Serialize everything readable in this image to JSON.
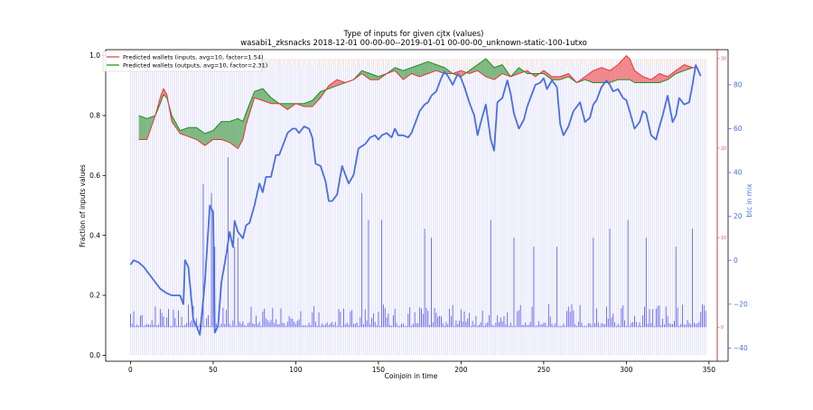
{
  "chart_data": {
    "type": "line",
    "title": "Type of inputs for given cjtx (values)",
    "subtitle": "wasabi1_zksnacks 2018-12-01 00-00-00--2019-01-01 00-00-00_unknown-static-100-1utxo",
    "xlabel": "Coinjoin in time",
    "ylabel_left": "Fraction of inputs values",
    "ylabel_right": "btc in mix",
    "xlim": [
      -15,
      355
    ],
    "ylim_left": [
      -0.02,
      1.02
    ],
    "ylim_right": [
      -46,
      96
    ],
    "ylim_mid": [
      -3.8,
      31
    ],
    "x_ticks": [
      0,
      50,
      100,
      150,
      200,
      250,
      300,
      350
    ],
    "y_ticks_left": [
      0.0,
      0.2,
      0.4,
      0.6,
      0.8,
      1.0
    ],
    "y_ticks_right": [
      -40,
      -20,
      0,
      20,
      40,
      60,
      80
    ],
    "y_ticks_mid": [
      0,
      10,
      20,
      30
    ],
    "grid": false,
    "legend_position": "top-left",
    "colors": {
      "inputs": "#ee3333",
      "outputs": "#228B22",
      "btc": "#4a6fe0",
      "bars": "#3a3ae8",
      "stripes": "#b8b8f0",
      "mid_axis": "#e05555"
    },
    "series": [
      {
        "name": "Predicted wallets (inputs, avg=10, factor=1.54)",
        "axis": "left",
        "x": [
          5,
          10,
          15,
          18,
          20,
          22,
          25,
          30,
          35,
          40,
          45,
          50,
          55,
          60,
          65,
          68,
          70,
          75,
          80,
          85,
          90,
          95,
          100,
          105,
          110,
          115,
          120,
          125,
          130,
          135,
          140,
          145,
          150,
          155,
          160,
          165,
          170,
          175,
          180,
          185,
          190,
          195,
          200,
          205,
          210,
          215,
          220,
          225,
          230,
          235,
          240,
          245,
          250,
          255,
          260,
          265,
          270,
          275,
          280,
          285,
          290,
          295,
          300,
          302,
          305,
          310,
          315,
          320,
          325,
          330,
          335,
          340,
          343
        ],
        "values": [
          0.72,
          0.72,
          0.8,
          0.86,
          0.89,
          0.87,
          0.78,
          0.74,
          0.73,
          0.72,
          0.7,
          0.72,
          0.72,
          0.71,
          0.69,
          0.72,
          0.77,
          0.86,
          0.85,
          0.84,
          0.84,
          0.82,
          0.84,
          0.83,
          0.83,
          0.86,
          0.9,
          0.92,
          0.91,
          0.92,
          0.94,
          0.92,
          0.92,
          0.94,
          0.95,
          0.92,
          0.94,
          0.93,
          0.94,
          0.95,
          0.94,
          0.94,
          0.95,
          0.94,
          0.95,
          0.93,
          0.92,
          0.94,
          0.93,
          0.94,
          0.95,
          0.93,
          0.95,
          0.93,
          0.93,
          0.94,
          0.91,
          0.93,
          0.95,
          0.96,
          0.95,
          0.97,
          1.0,
          0.99,
          0.95,
          0.93,
          0.92,
          0.94,
          0.93,
          0.95,
          0.97,
          0.96,
          0.96
        ]
      },
      {
        "name": "Predicted wallets (outputs, avg=10, factor=2.31)",
        "axis": "left",
        "x": [
          5,
          10,
          15,
          18,
          20,
          22,
          25,
          30,
          35,
          40,
          45,
          50,
          55,
          60,
          65,
          68,
          70,
          75,
          80,
          85,
          90,
          95,
          100,
          105,
          110,
          115,
          120,
          125,
          130,
          135,
          140,
          145,
          150,
          155,
          160,
          165,
          170,
          175,
          180,
          185,
          190,
          195,
          200,
          205,
          210,
          215,
          220,
          225,
          230,
          235,
          240,
          245,
          250,
          255,
          260,
          265,
          270,
          275,
          280,
          285,
          290,
          295,
          300,
          302,
          305,
          310,
          315,
          320,
          325,
          330,
          335,
          340,
          343
        ],
        "values": [
          0.8,
          0.79,
          0.8,
          0.84,
          0.87,
          0.86,
          0.8,
          0.75,
          0.76,
          0.76,
          0.74,
          0.75,
          0.78,
          0.78,
          0.79,
          0.78,
          0.81,
          0.88,
          0.89,
          0.86,
          0.84,
          0.84,
          0.84,
          0.84,
          0.85,
          0.88,
          0.89,
          0.9,
          0.91,
          0.92,
          0.95,
          0.94,
          0.93,
          0.94,
          0.96,
          0.95,
          0.96,
          0.97,
          0.98,
          0.97,
          0.96,
          0.94,
          0.93,
          0.95,
          0.97,
          0.99,
          0.96,
          0.97,
          0.93,
          0.96,
          0.94,
          0.94,
          0.94,
          0.92,
          0.92,
          0.93,
          0.91,
          0.92,
          0.91,
          0.91,
          0.91,
          0.92,
          0.92,
          0.92,
          0.91,
          0.91,
          0.91,
          0.91,
          0.92,
          0.94,
          0.95,
          0.96,
          0.96
        ]
      },
      {
        "name": "btc in mix",
        "axis": "right",
        "x": [
          0,
          2,
          5,
          8,
          10,
          12,
          15,
          18,
          20,
          22,
          25,
          28,
          30,
          32,
          33,
          35,
          38,
          40,
          42,
          45,
          48,
          50,
          51,
          53,
          55,
          58,
          60,
          62,
          63,
          65,
          68,
          70,
          72,
          75,
          78,
          80,
          82,
          85,
          88,
          90,
          92,
          95,
          98,
          100,
          102,
          105,
          108,
          110,
          112,
          115,
          118,
          120,
          122,
          125,
          128,
          130,
          132,
          135,
          138,
          140,
          142,
          145,
          148,
          150,
          152,
          155,
          158,
          160,
          162,
          165,
          168,
          170,
          172,
          175,
          178,
          180,
          182,
          185,
          188,
          190,
          192,
          195,
          198,
          200,
          202,
          205,
          208,
          210,
          212,
          215,
          218,
          220,
          222,
          225,
          228,
          230,
          232,
          235,
          238,
          240,
          242,
          245,
          248,
          250,
          252,
          255,
          258,
          260,
          262,
          265,
          268,
          270,
          272,
          275,
          278,
          280,
          282,
          285,
          288,
          290,
          292,
          295,
          298,
          300,
          302,
          305,
          308,
          310,
          312,
          315,
          318,
          320,
          322,
          325,
          328,
          330,
          332,
          335,
          338,
          340,
          342,
          345
        ],
        "values": [
          -2,
          0,
          -1,
          -3,
          -5,
          -7,
          -10,
          -13,
          -14,
          -15,
          -16,
          -16,
          -16,
          -20,
          0,
          -3,
          -27,
          -30,
          -34,
          -10,
          25,
          22,
          -33,
          -30,
          -10,
          3,
          13,
          6,
          18,
          13,
          10,
          16,
          17,
          25,
          35,
          31,
          38,
          38,
          48,
          48,
          52,
          58,
          60,
          60,
          58,
          61,
          60,
          56,
          44,
          43,
          36,
          27,
          27,
          30,
          43,
          39,
          35,
          39,
          51,
          52,
          53,
          56,
          57,
          55,
          57,
          58,
          56,
          60,
          57,
          57,
          56,
          58,
          62,
          68,
          71,
          72,
          75,
          77,
          83,
          86,
          84,
          80,
          85,
          83,
          79,
          72,
          66,
          57,
          63,
          71,
          55,
          50,
          72,
          74,
          82,
          76,
          67,
          60,
          64,
          70,
          74,
          80,
          81,
          83,
          78,
          82,
          79,
          62,
          57,
          61,
          68,
          70,
          72,
          63,
          65,
          71,
          73,
          79,
          82,
          80,
          77,
          78,
          74,
          73,
          68,
          60,
          63,
          68,
          67,
          57,
          55,
          61,
          66,
          75,
          63,
          66,
          74,
          71,
          72,
          80,
          89,
          84
        ]
      }
    ]
  }
}
